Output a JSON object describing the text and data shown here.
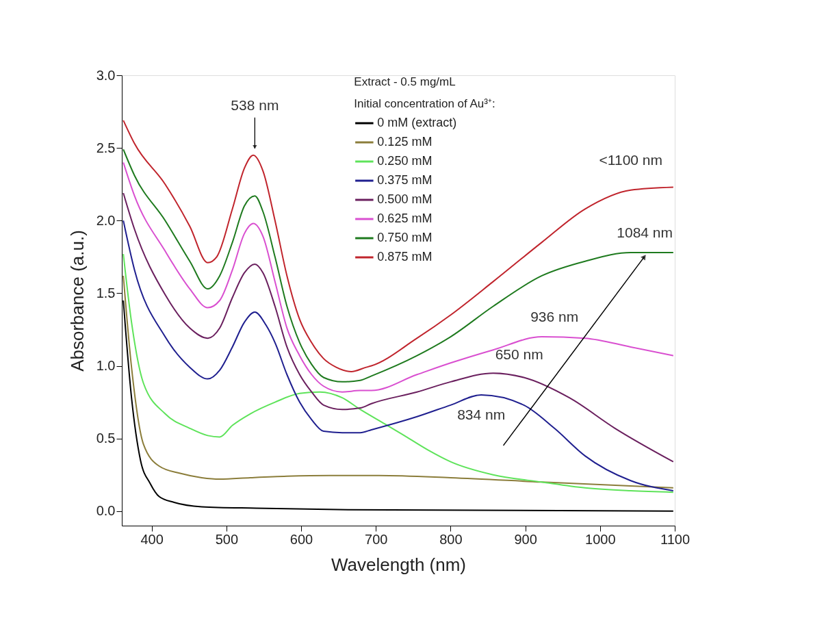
{
  "chart_data": {
    "type": "line",
    "xlabel": "Wavelength (nm)",
    "ylabel": "Absorbance (a.u.)",
    "legend_title": "Extract - 0.5 mg/mL\nInitial concentration of Au³⁺:",
    "xlim": [
      360,
      1100
    ],
    "xticks": [
      400,
      500,
      600,
      700,
      800,
      900,
      1000,
      1100
    ],
    "ylim": [
      -0.1,
      3.0
    ],
    "yticks": [
      {
        "value": 0,
        "label": "0.0"
      },
      {
        "value": 0.5,
        "label": "0.5"
      },
      {
        "value": 1,
        "label": "1.0"
      },
      {
        "value": 1.5,
        "label": "1.5"
      },
      {
        "value": 2,
        "label": "2.0"
      },
      {
        "value": 2.5,
        "label": "2.5"
      },
      {
        "value": 3,
        "label": "3.0"
      }
    ],
    "grid": false,
    "legend": "top",
    "marker": "none",
    "line_style": "solid",
    "annotations": [
      {
        "text": "538 nm",
        "x": 538,
        "y": 2.45
      },
      {
        "text": "<1100 nm",
        "x": 1098,
        "y": 2.23
      },
      {
        "text": "1084 nm",
        "x": 1080,
        "y": 1.78
      },
      {
        "text": "936 nm",
        "x": 939,
        "y": 1.2
      },
      {
        "text": "650 nm",
        "x": 857,
        "y": 0.95
      },
      {
        "text": "834 nm",
        "x": 841,
        "y": 0.8
      }
    ],
    "series": [
      {
        "name": "0 mM (extract)",
        "color": "#000000",
        "x": [
          362,
          373,
          385,
          398,
          410,
          430,
          467,
          540,
          663,
          1098
        ],
        "values": [
          1.45,
          0.78,
          0.35,
          0.19,
          0.1,
          0.06,
          0.03,
          0.02,
          0.01,
          0.0
        ]
      },
      {
        "name": "0.125 mM",
        "color": "#8b7d3a",
        "x": [
          362,
          373,
          389,
          410,
          438,
          467,
          491,
          532,
          581,
          638,
          704,
          800,
          922,
          1098
        ],
        "values": [
          1.62,
          0.99,
          0.46,
          0.31,
          0.26,
          0.23,
          0.22,
          0.23,
          0.24,
          0.245,
          0.245,
          0.23,
          0.2,
          0.16
        ]
      },
      {
        "name": "0.250 mM",
        "color": "#5ee35a",
        "x": [
          362,
          373,
          389,
          418,
          451,
          475,
          491,
          508,
          532,
          565,
          598,
          625,
          655,
          679,
          712,
          735,
          770,
          800,
          857,
          922,
          980,
          1041,
          1098
        ],
        "values": [
          1.77,
          1.3,
          0.88,
          0.67,
          0.57,
          0.52,
          0.51,
          0.59,
          0.67,
          0.75,
          0.81,
          0.82,
          0.78,
          0.7,
          0.6,
          0.53,
          0.42,
          0.34,
          0.25,
          0.2,
          0.16,
          0.14,
          0.13
        ]
      },
      {
        "name": "0.375 mM",
        "color": "#1f1f8f",
        "x": [
          362,
          377,
          418,
          451,
          475,
          491,
          508,
          524,
          538,
          553,
          565,
          581,
          598,
          614,
          630,
          655,
          679,
          694,
          755,
          800,
          841,
          898,
          939,
          980,
          1041,
          1098
        ],
        "values": [
          2.0,
          1.66,
          1.2,
          0.99,
          0.91,
          0.97,
          1.13,
          1.3,
          1.37,
          1.28,
          1.16,
          0.94,
          0.75,
          0.63,
          0.55,
          0.54,
          0.54,
          0.56,
          0.65,
          0.73,
          0.8,
          0.73,
          0.57,
          0.38,
          0.21,
          0.14
        ]
      },
      {
        "name": "0.500 mM",
        "color": "#6a1f5e",
        "x": [
          362,
          377,
          418,
          451,
          475,
          491,
          508,
          524,
          538,
          549,
          565,
          581,
          598,
          614,
          630,
          655,
          679,
          694,
          755,
          800,
          857,
          898,
          959,
          1020,
          1098
        ],
        "values": [
          2.19,
          1.94,
          1.49,
          1.26,
          1.19,
          1.26,
          1.47,
          1.64,
          1.7,
          1.64,
          1.41,
          1.13,
          0.94,
          0.82,
          0.73,
          0.7,
          0.71,
          0.74,
          0.82,
          0.89,
          0.95,
          0.92,
          0.78,
          0.57,
          0.34
        ]
      },
      {
        "name": "0.625 mM",
        "color": "#d94fd0",
        "x": [
          362,
          377,
          418,
          451,
          475,
          491,
          508,
          524,
          536,
          549,
          565,
          581,
          598,
          614,
          630,
          655,
          679,
          694,
          755,
          800,
          857,
          922,
          980,
          1041,
          1098
        ],
        "values": [
          2.4,
          2.17,
          1.79,
          1.53,
          1.4,
          1.45,
          1.66,
          1.91,
          1.98,
          1.89,
          1.58,
          1.26,
          1.07,
          0.94,
          0.86,
          0.82,
          0.83,
          0.83,
          0.94,
          1.02,
          1.11,
          1.2,
          1.19,
          1.13,
          1.07
        ]
      },
      {
        "name": "0.750 mM",
        "color": "#1e7a1e",
        "x": [
          362,
          377,
          418,
          451,
          475,
          491,
          508,
          524,
          538,
          549,
          565,
          581,
          598,
          614,
          630,
          655,
          679,
          694,
          755,
          800,
          857,
          922,
          980,
          1041,
          1098
        ],
        "values": [
          2.49,
          2.31,
          2.0,
          1.72,
          1.53,
          1.62,
          1.85,
          2.1,
          2.17,
          2.06,
          1.75,
          1.41,
          1.16,
          1.01,
          0.92,
          0.89,
          0.9,
          0.93,
          1.07,
          1.2,
          1.41,
          1.62,
          1.72,
          1.78,
          1.78
        ]
      },
      {
        "name": "0.875 mM",
        "color": "#c0242c",
        "x": [
          362,
          377,
          418,
          451,
          475,
          487,
          508,
          524,
          536,
          549,
          565,
          581,
          598,
          614,
          630,
          647,
          667,
          687,
          694,
          755,
          800,
          857,
          922,
          980,
          1041,
          1098
        ],
        "values": [
          2.69,
          2.53,
          2.25,
          1.96,
          1.71,
          1.75,
          2.08,
          2.36,
          2.45,
          2.34,
          2.0,
          1.62,
          1.32,
          1.16,
          1.05,
          0.99,
          0.96,
          0.99,
          1.0,
          1.19,
          1.35,
          1.58,
          1.85,
          2.08,
          2.21,
          2.23
        ]
      }
    ]
  }
}
